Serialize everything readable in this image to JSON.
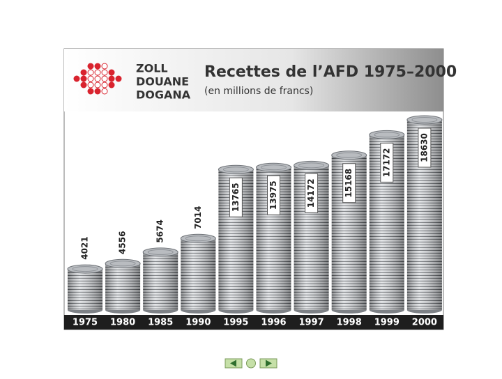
{
  "logo": {
    "lines": [
      "ZOLL",
      "DOUANE",
      "DOGANA"
    ]
  },
  "chart_data": {
    "type": "bar",
    "title": "Recettes de l’AFD 1975–2000",
    "subtitle": "(en millions de francs)",
    "categories": [
      "1975",
      "1980",
      "1985",
      "1990",
      "1995",
      "1996",
      "1997",
      "1998",
      "1999",
      "2000"
    ],
    "values": [
      4021,
      4556,
      5674,
      7014,
      13765,
      13975,
      14172,
      15168,
      17172,
      18630
    ],
    "color": "#b9bcc0"
  }
}
